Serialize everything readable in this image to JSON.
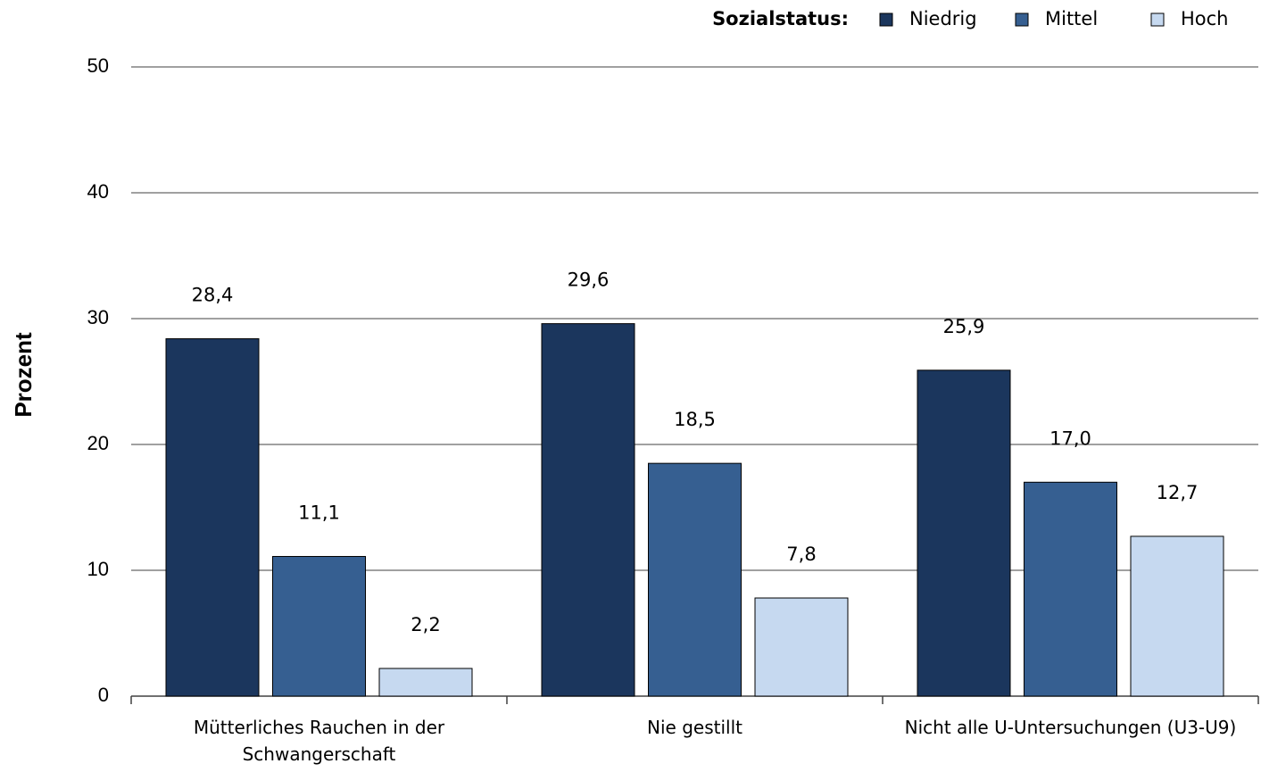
{
  "chart_data": {
    "type": "bar",
    "y_label": "Prozent",
    "legend_title": "Sozialstatus:",
    "legend": "top-right",
    "categories": [
      "Mütterliches Rauchen in der Schwangerschaft",
      "Nie gestillt",
      "Nicht alle U-Untersuchungen (U3-U9)"
    ],
    "series": [
      {
        "name": "Niedrig",
        "color": "#1b365d",
        "values": [
          28.4,
          29.6,
          25.9
        ],
        "value_labels": [
          "28,4",
          "29,6",
          "25,9"
        ]
      },
      {
        "name": "Mittel",
        "color": "#365f91",
        "values": [
          11.1,
          18.5,
          17.0
        ],
        "value_labels": [
          "11,1",
          "18,5",
          "17,0"
        ]
      },
      {
        "name": "Hoch",
        "color": "#c6d9f0",
        "values": [
          2.2,
          7.8,
          12.7
        ],
        "value_labels": [
          "2,2",
          "7,8",
          "12,7"
        ]
      }
    ],
    "ylim": [
      0,
      50
    ],
    "yticks": [
      0,
      10,
      20,
      30,
      40,
      50
    ],
    "grid": true
  }
}
